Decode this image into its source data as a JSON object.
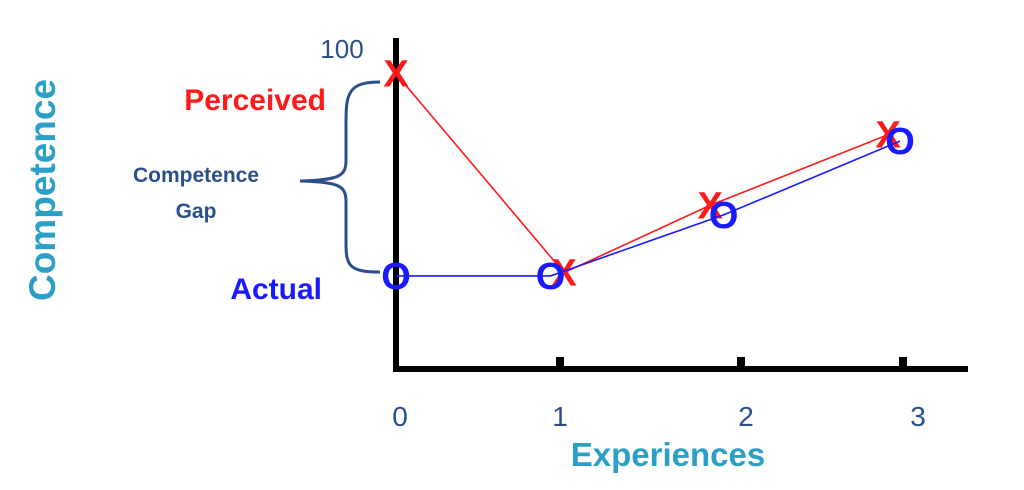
{
  "chart_data": {
    "type": "line",
    "title": "",
    "xlabel": "Experiences",
    "ylabel": "Competence",
    "x_ticks": [
      "0",
      "1",
      "2",
      "3"
    ],
    "y_tick_label": "100",
    "series": [
      {
        "name": "Perceived",
        "color": "#ff1a1a",
        "marker": "X",
        "points": [
          {
            "x": 0,
            "y": 92
          },
          {
            "x": 1,
            "y": 30
          },
          {
            "x": 1.87,
            "y": 51
          },
          {
            "x": 2.93,
            "y": 73
          }
        ]
      },
      {
        "name": "Actual",
        "color": "#1a1aff",
        "marker": "O",
        "points": [
          {
            "x": 0,
            "y": 29
          },
          {
            "x": 0.92,
            "y": 29
          },
          {
            "x": 1.95,
            "y": 48
          },
          {
            "x": 3.0,
            "y": 71
          }
        ]
      }
    ],
    "annotation": {
      "line1": "Competence",
      "line2": "Gap"
    },
    "xlim": [
      0,
      3
    ],
    "ylim": [
      0,
      100
    ],
    "axis_label_color": "#2c9fc7",
    "annotation_color": "#2b4f8c"
  }
}
